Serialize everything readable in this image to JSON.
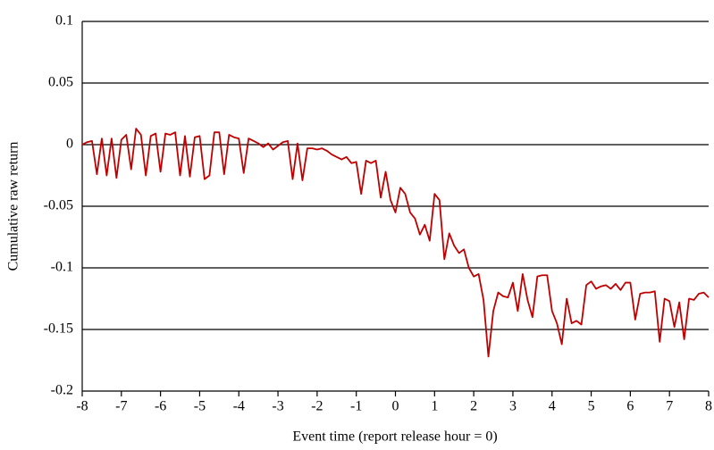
{
  "chart_data": {
    "type": "line",
    "xlabel": "Event time (report release hour = 0)",
    "ylabel": "Cumulative raw return",
    "color": "#c00000",
    "grid": true,
    "xlim": [
      -8,
      8
    ],
    "ylim": [
      -0.2,
      0.1
    ],
    "xticks": [
      -8,
      -7,
      -6,
      -5,
      -4,
      -3,
      -2,
      -1,
      0,
      1,
      2,
      3,
      4,
      5,
      6,
      7,
      8
    ],
    "yticks": [
      0.1,
      0.05,
      0,
      -0.05,
      -0.1,
      -0.15,
      -0.2
    ],
    "x": [
      -8,
      -7.875,
      -7.75,
      -7.625,
      -7.5,
      -7.375,
      -7.25,
      -7.125,
      -7,
      -6.875,
      -6.75,
      -6.625,
      -6.5,
      -6.375,
      -6.25,
      -6.125,
      -6,
      -5.875,
      -5.75,
      -5.625,
      -5.5,
      -5.375,
      -5.25,
      -5.125,
      -5,
      -4.875,
      -4.75,
      -4.625,
      -4.5,
      -4.375,
      -4.25,
      -4.125,
      -4,
      -3.875,
      -3.75,
      -3.625,
      -3.5,
      -3.375,
      -3.25,
      -3.125,
      -3,
      -2.875,
      -2.75,
      -2.625,
      -2.5,
      -2.375,
      -2.25,
      -2.125,
      -2,
      -1.875,
      -1.75,
      -1.625,
      -1.5,
      -1.375,
      -1.25,
      -1.125,
      -1,
      -0.875,
      -0.75,
      -0.625,
      -0.5,
      -0.375,
      -0.25,
      -0.125,
      0,
      0.125,
      0.25,
      0.375,
      0.5,
      0.625,
      0.75,
      0.875,
      1,
      1.125,
      1.25,
      1.375,
      1.5,
      1.625,
      1.75,
      1.875,
      2,
      2.125,
      2.25,
      2.375,
      2.5,
      2.625,
      2.75,
      2.875,
      3,
      3.125,
      3.25,
      3.375,
      3.5,
      3.625,
      3.75,
      3.875,
      4,
      4.125,
      4.25,
      4.375,
      4.5,
      4.625,
      4.75,
      4.875,
      5,
      5.125,
      5.25,
      5.375,
      5.5,
      5.625,
      5.75,
      5.875,
      6,
      6.125,
      6.25,
      6.375,
      6.5,
      6.625,
      6.75,
      6.875,
      7,
      7.125,
      7.25,
      7.375,
      7.5,
      7.625,
      7.75,
      7.875,
      8
    ],
    "values": [
      0,
      0.002,
      0.003,
      -0.024,
      0.005,
      -0.025,
      0.005,
      -0.027,
      0.004,
      0.008,
      -0.02,
      0.013,
      0.008,
      -0.025,
      0.007,
      0.009,
      -0.022,
      0.009,
      0.008,
      0.01,
      -0.025,
      0.007,
      -0.026,
      0.006,
      0.007,
      -0.028,
      -0.025,
      0.01,
      0.01,
      -0.024,
      0.008,
      0.006,
      0.005,
      -0.023,
      0.005,
      0.003,
      0.001,
      -0.002,
      0.001,
      -0.004,
      -0.001,
      0.002,
      0.003,
      -0.028,
      0.001,
      -0.029,
      -0.003,
      -0.003,
      -0.004,
      -0.003,
      -0.005,
      -0.008,
      -0.01,
      -0.012,
      -0.01,
      -0.015,
      -0.014,
      -0.04,
      -0.013,
      -0.015,
      -0.013,
      -0.043,
      -0.022,
      -0.045,
      -0.055,
      -0.035,
      -0.04,
      -0.055,
      -0.06,
      -0.073,
      -0.065,
      -0.078,
      -0.04,
      -0.045,
      -0.093,
      -0.072,
      -0.082,
      -0.088,
      -0.085,
      -0.1,
      -0.107,
      -0.105,
      -0.126,
      -0.172,
      -0.135,
      -0.12,
      -0.123,
      -0.124,
      -0.112,
      -0.135,
      -0.105,
      -0.126,
      -0.14,
      -0.107,
      -0.106,
      -0.106,
      -0.135,
      -0.145,
      -0.162,
      -0.125,
      -0.145,
      -0.143,
      -0.146,
      -0.114,
      -0.111,
      -0.117,
      -0.115,
      -0.114,
      -0.117,
      -0.113,
      -0.118,
      -0.112,
      -0.112,
      -0.142,
      -0.121,
      -0.12,
      -0.12,
      -0.119,
      -0.16,
      -0.125,
      -0.127,
      -0.148,
      -0.128,
      -0.158,
      -0.125,
      -0.126,
      -0.121,
      -0.12,
      -0.124
    ]
  }
}
